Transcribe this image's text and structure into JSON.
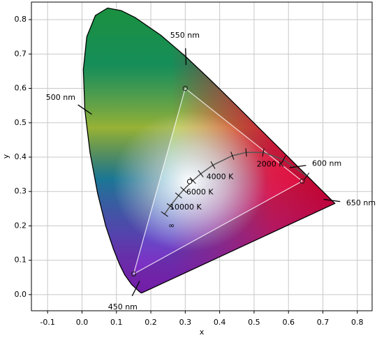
{
  "chart_data": {
    "type": "chromaticity",
    "xlabel": "x",
    "ylabel": "y",
    "xlim": [
      -0.147,
      0.843
    ],
    "ylim": [
      -0.047,
      0.851
    ],
    "xticks": [
      -0.1,
      {
        "value": 0,
        "label": "0.0"
      },
      0.1,
      0.2,
      0.3,
      0.4,
      0.5,
      0.6,
      0.7,
      0.8
    ],
    "yticks": [
      {
        "value": 0,
        "label": "0.0"
      },
      0.1,
      0.2,
      0.3,
      0.4,
      0.5,
      0.6,
      0.7,
      0.8
    ],
    "grid": true,
    "spectral_locus": {
      "color": "#000000",
      "x": [
        0.1741,
        0.1714,
        0.1644,
        0.1566,
        0.144,
        0.1241,
        0.1096,
        0.0913,
        0.0687,
        0.0454,
        0.0235,
        0.0082,
        0.0039,
        0.0139,
        0.0389,
        0.0743,
        0.1142,
        0.1547,
        0.2296,
        0.3016,
        0.3731,
        0.4441,
        0.5125,
        0.5752,
        0.627,
        0.6658,
        0.6915,
        0.7079,
        0.719,
        0.726,
        0.7347
      ],
      "y": [
        0.005,
        0.0051,
        0.0109,
        0.0177,
        0.0297,
        0.0578,
        0.0868,
        0.1327,
        0.2007,
        0.295,
        0.4127,
        0.5384,
        0.6548,
        0.7502,
        0.812,
        0.8338,
        0.8262,
        0.8059,
        0.7543,
        0.6923,
        0.6245,
        0.5547,
        0.4866,
        0.4242,
        0.3725,
        0.334,
        0.3083,
        0.292,
        0.2809,
        0.274,
        0.2653
      ]
    },
    "gamut": {
      "color": "#ffffff",
      "x": [
        0.64,
        0.3,
        0.15
      ],
      "y": [
        0.33,
        0.6,
        0.06
      ]
    },
    "white_point": {
      "x": 0.3127,
      "y": 0.329
    },
    "planckian_locus": {
      "color": "#555555",
      "x": [
        0.6528,
        0.5857,
        0.5267,
        0.477,
        0.4369,
        0.3805,
        0.3451,
        0.3221,
        0.2952,
        0.2807,
        0.2565,
        0.2399
      ],
      "y": [
        0.3444,
        0.3931,
        0.4133,
        0.4137,
        0.4041,
        0.3768,
        0.3516,
        0.3318,
        0.3048,
        0.2884,
        0.2577,
        0.2342
      ]
    },
    "wavelength_labels": [
      {
        "text": "450 nm",
        "x": 0.1566,
        "y": 0.0177
      },
      {
        "text": "500 nm",
        "x": 0.0082,
        "y": 0.5384
      },
      {
        "text": "550 nm",
        "x": 0.3016,
        "y": 0.6923
      },
      {
        "text": "600 nm",
        "x": 0.627,
        "y": 0.3725
      },
      {
        "text": "650 nm",
        "x": 0.726,
        "y": 0.274
      }
    ],
    "temperature_labels": [
      {
        "text": "2000 K",
        "x": 0.5267,
        "y": 0.4133
      },
      {
        "text": "4000 K",
        "x": 0.3805,
        "y": 0.3768
      },
      {
        "text": "6000 K",
        "x": 0.3221,
        "y": 0.3318
      },
      {
        "text": "10000 K",
        "x": 0.2807,
        "y": 0.2884
      },
      {
        "text": "∞",
        "x": 0.2399,
        "y": 0.2342
      }
    ]
  }
}
